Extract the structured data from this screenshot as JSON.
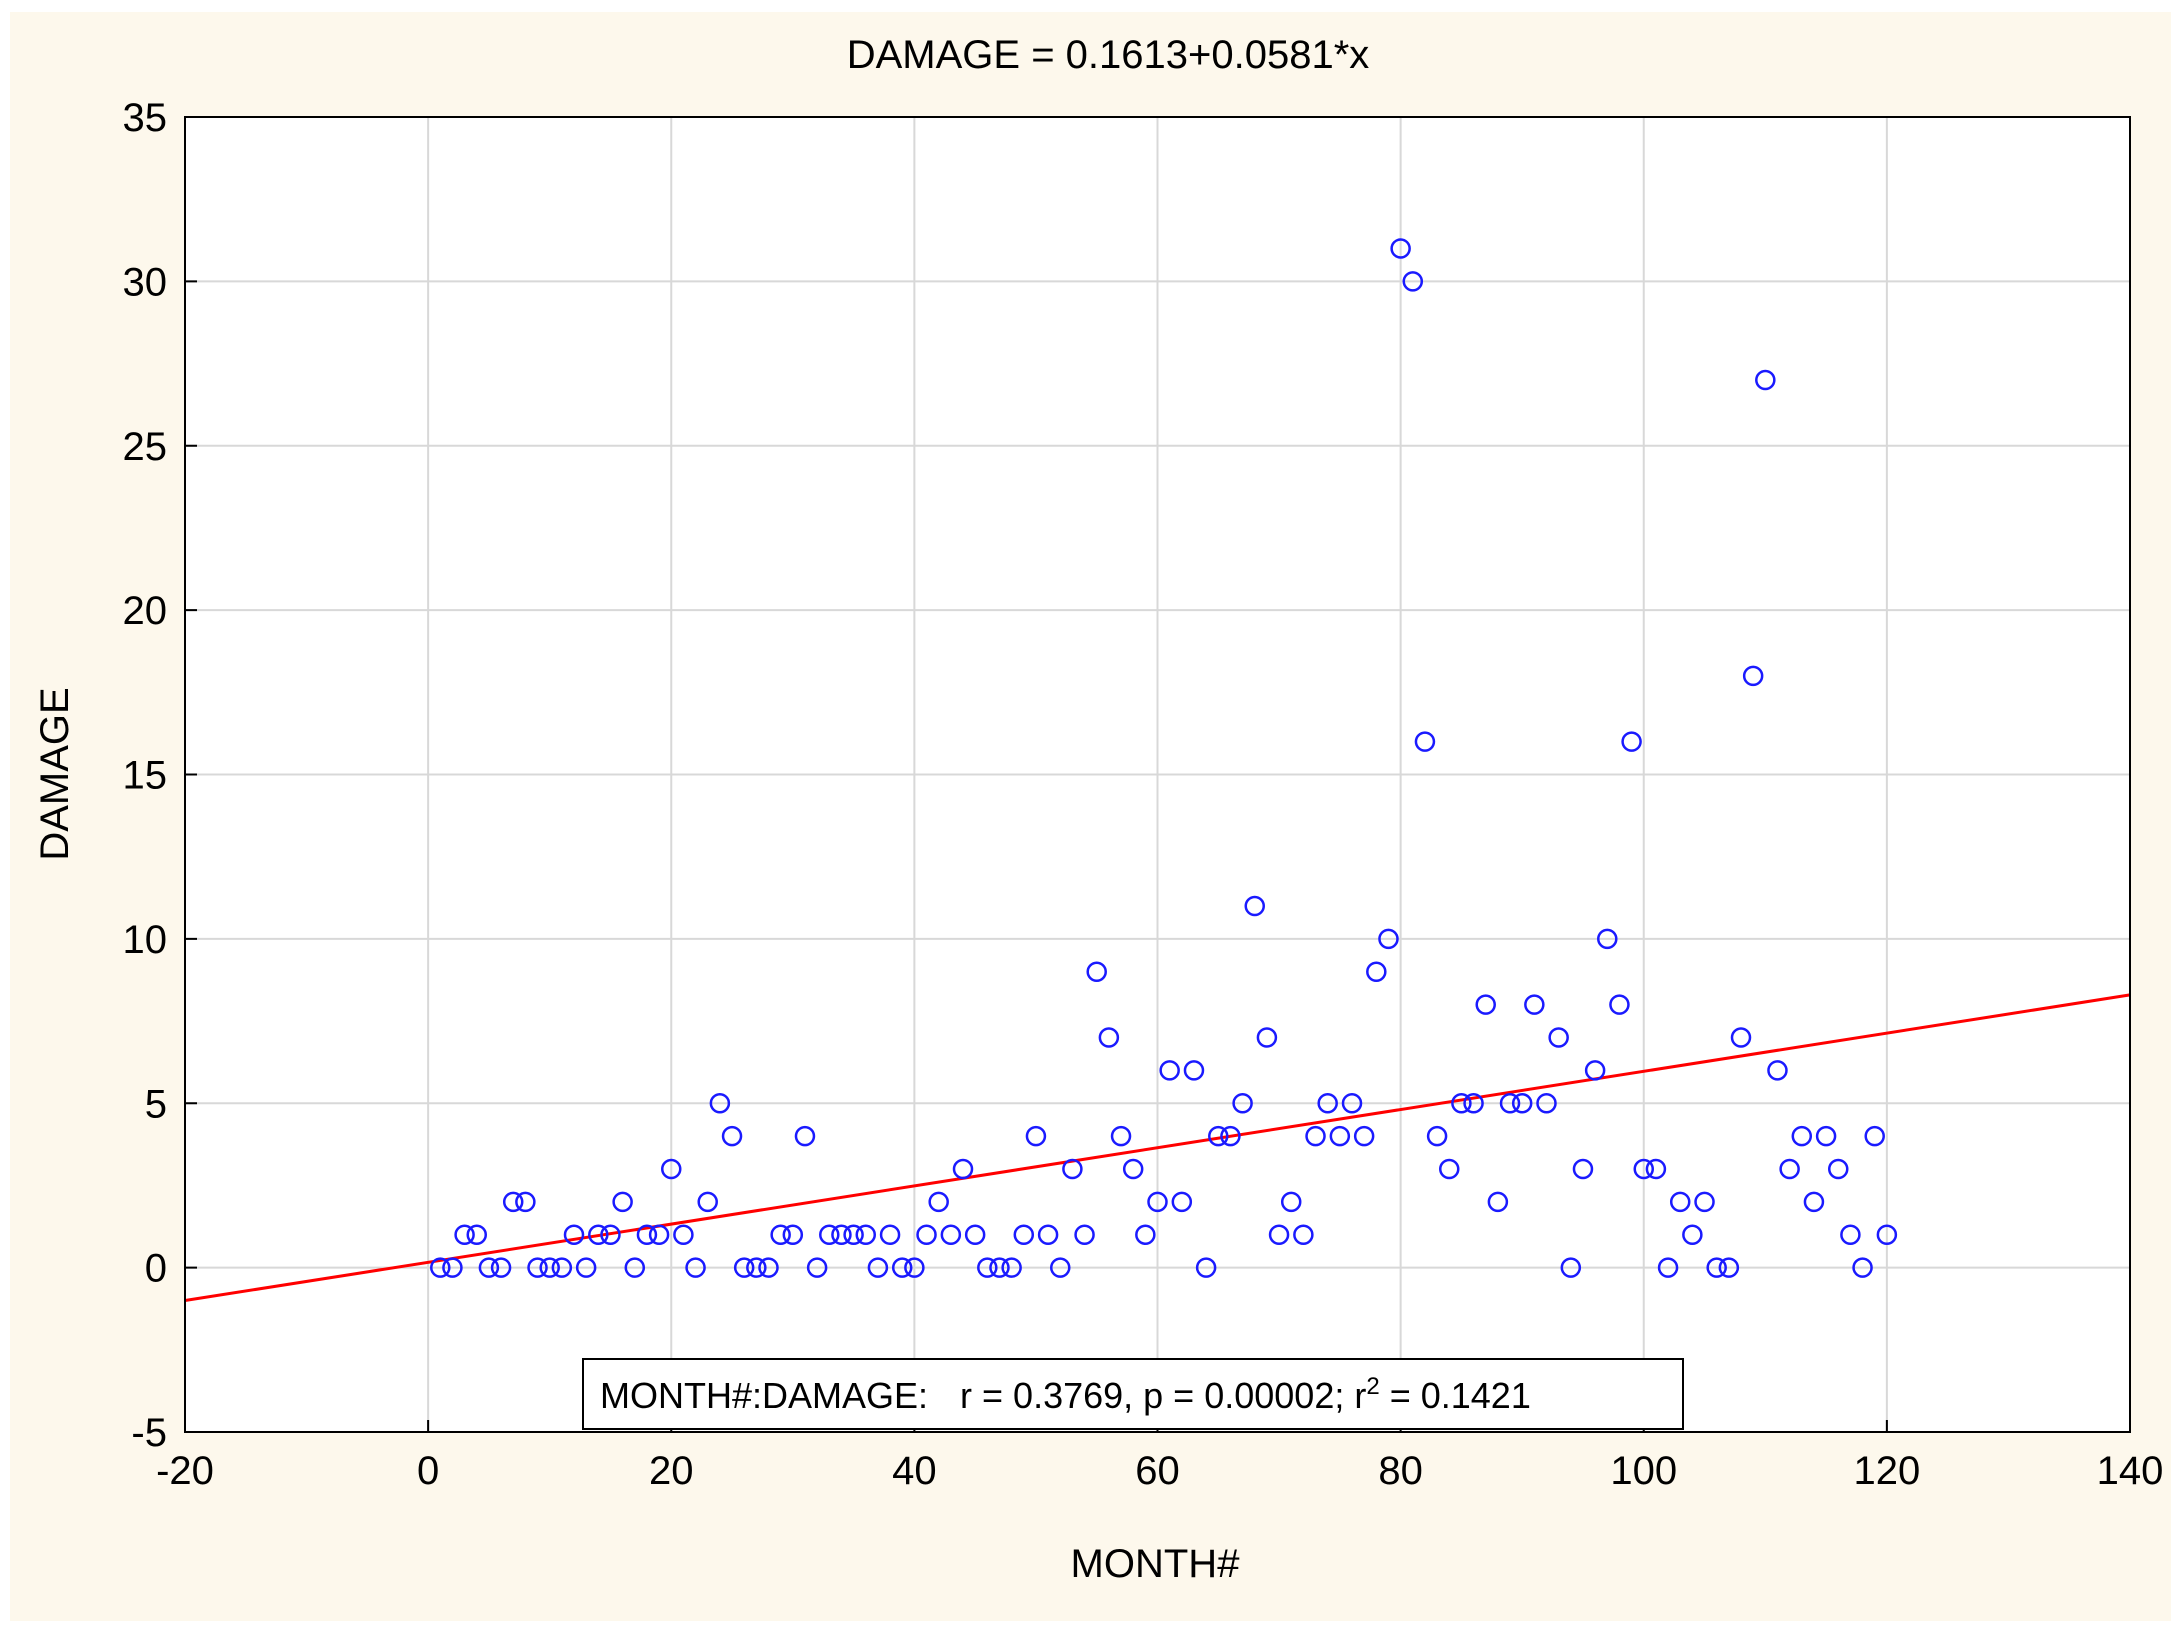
{
  "colors": {
    "background": "#fdf8ec",
    "plot_background": "#ffffff",
    "grid": "#d8d8d8",
    "points": "#1a1aff",
    "fit_line": "#ff0000"
  },
  "chart_data": {
    "type": "scatter",
    "title": "DAMAGE = 0.1613+0.0581*x",
    "xlabel": "MONTH#",
    "ylabel": "DAMAGE",
    "xlim": [
      -20,
      140
    ],
    "ylim": [
      -5,
      35
    ],
    "xticks": [
      -20,
      0,
      20,
      40,
      60,
      80,
      100,
      120,
      140
    ],
    "yticks": [
      -5,
      0,
      5,
      10,
      15,
      20,
      25,
      30,
      35
    ],
    "grid": true,
    "fit": {
      "intercept": 0.1613,
      "slope": 0.0581
    },
    "stats": {
      "prefix": "MONTH#:DAMAGE:",
      "r_text": "r = 0.3769, p = 0.00002; r",
      "r2_sup": "2",
      "r2_text": " = 0.1421"
    },
    "series": [
      {
        "name": "DAMAGE",
        "x": [
          1,
          2,
          3,
          4,
          5,
          6,
          7,
          8,
          9,
          10,
          11,
          12,
          13,
          14,
          15,
          16,
          17,
          18,
          19,
          20,
          21,
          22,
          23,
          24,
          25,
          26,
          27,
          28,
          29,
          30,
          31,
          32,
          33,
          34,
          35,
          36,
          37,
          38,
          39,
          40,
          41,
          42,
          43,
          44,
          45,
          46,
          47,
          48,
          49,
          50,
          51,
          52,
          53,
          54,
          55,
          56,
          57,
          58,
          59,
          60,
          61,
          62,
          63,
          64,
          65,
          66,
          67,
          68,
          69,
          70,
          71,
          72,
          73,
          74,
          75,
          76,
          77,
          78,
          79,
          80,
          81,
          82,
          83,
          84,
          85,
          86,
          87,
          88,
          89,
          90,
          91,
          92,
          93,
          94,
          95,
          96,
          97,
          98,
          99,
          100,
          101,
          102,
          103,
          104,
          105,
          106,
          107,
          108,
          109,
          110,
          111,
          112,
          113,
          114,
          115,
          116,
          117,
          118,
          119,
          120
        ],
        "y": [
          0,
          0,
          1,
          1,
          0,
          0,
          2,
          2,
          0,
          0,
          0,
          1,
          0,
          1,
          1,
          2,
          0,
          1,
          1,
          3,
          1,
          0,
          2,
          5,
          4,
          0,
          0,
          0,
          1,
          1,
          4,
          0,
          1,
          1,
          1,
          1,
          0,
          1,
          0,
          0,
          1,
          2,
          1,
          3,
          1,
          0,
          0,
          0,
          1,
          4,
          1,
          0,
          3,
          1,
          9,
          7,
          4,
          3,
          1,
          2,
          6,
          2,
          6,
          0,
          4,
          4,
          5,
          11,
          7,
          1,
          2,
          1,
          4,
          5,
          4,
          5,
          4,
          9,
          10,
          31,
          30,
          16,
          4,
          3,
          5,
          5,
          8,
          2,
          5,
          5,
          8,
          5,
          7,
          0,
          3,
          6,
          10,
          8,
          16,
          3,
          3,
          0,
          2,
          1,
          2,
          0,
          0,
          7,
          18,
          27,
          6,
          3,
          4,
          2,
          4,
          3,
          1,
          0,
          4,
          1
        ]
      }
    ]
  }
}
